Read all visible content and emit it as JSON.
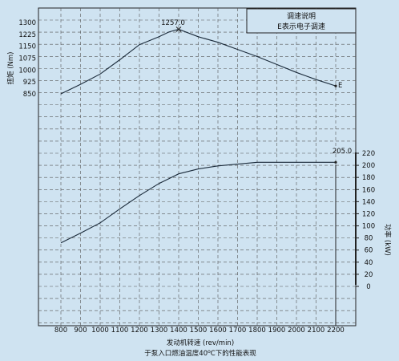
{
  "chart_data": {
    "type": "line",
    "xlabel": "发动机转速 (rev/min)",
    "caption": "于泵入口燃油温度40°C下的性能表现",
    "x_ticks": [
      800,
      900,
      1000,
      1100,
      1200,
      1300,
      1400,
      1500,
      1600,
      1700,
      1800,
      1900,
      2000,
      2100,
      2200
    ],
    "grid": true,
    "left_axis": {
      "label": "扭矩 (Nm)",
      "ticks": [
        "850",
        "925",
        "1000",
        "1075",
        "1150",
        "1225",
        "1300"
      ],
      "ylim": [
        850,
        1300
      ]
    },
    "right_axis": {
      "label": "功率 (kW)",
      "ticks": [
        "0",
        "20",
        "40",
        "60",
        "80",
        "100",
        "120",
        "140",
        "160",
        "180",
        "200",
        "220"
      ],
      "ylim": [
        0,
        220
      ]
    },
    "legend_box": {
      "line1": "调速说明",
      "line2": "E表示电子调速"
    },
    "series": [
      {
        "axis": "left",
        "x": [
          800,
          900,
          1000,
          1100,
          1200,
          1250,
          1300,
          1350,
          1400,
          1500,
          1600,
          1700,
          1800,
          1900,
          2000,
          2100,
          2200
        ],
        "values": [
          850,
          910,
          975,
          1065,
          1160,
          1185,
          1210,
          1240,
          1257,
          1210,
          1175,
          1130,
          1085,
          1035,
          985,
          940,
          900
        ]
      },
      {
        "axis": "right",
        "x": [
          800,
          900,
          1000,
          1100,
          1200,
          1300,
          1350,
          1400,
          1500,
          1600,
          1700,
          1800,
          1900,
          2000,
          2100,
          2200
        ],
        "values": [
          72,
          88,
          105,
          128,
          150,
          170,
          178,
          186,
          194,
          199,
          202,
          205,
          205,
          205,
          205,
          205
        ]
      }
    ],
    "annotations": {
      "torque_peak": "1257.0",
      "power_peak": "205.0",
      "end_marker": "E"
    }
  }
}
